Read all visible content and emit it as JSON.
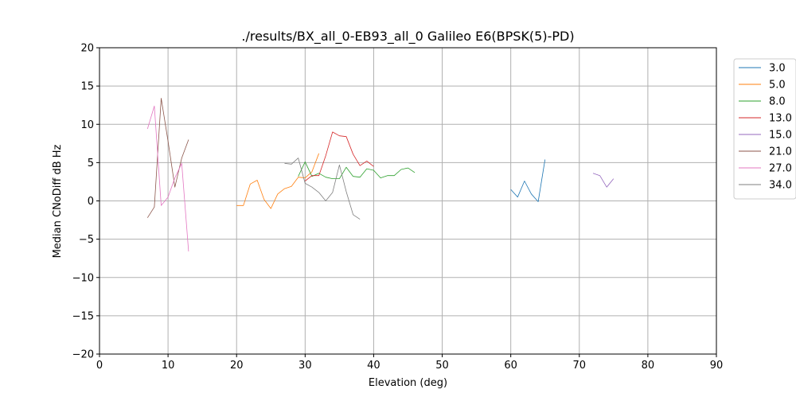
{
  "chart_data": {
    "type": "line",
    "title": "./results/BX_all_0-EB93_all_0 Galileo E6(BPSK(5)-PD)",
    "xlabel": "Elevation (deg)",
    "ylabel": "Median CNoDiff dB Hz",
    "xlim": [
      0,
      90
    ],
    "ylim": [
      -20,
      20
    ],
    "xticks": [
      "0",
      "10",
      "20",
      "30",
      "40",
      "50",
      "60",
      "70",
      "80",
      "90"
    ],
    "yticks": [
      "20",
      "15",
      "10",
      "5",
      "0",
      "−5",
      "−10",
      "−15",
      "−20"
    ],
    "grid": true,
    "legend_position": "outside-top-right",
    "series": [
      {
        "name": "3.0",
        "color": "#1f77b4",
        "x": [
          60,
          61,
          62,
          63,
          64,
          65
        ],
        "y": [
          1.5,
          0.5,
          2.6,
          0.9,
          -0.1,
          5.4
        ]
      },
      {
        "name": "5.0",
        "color": "#ff7f0e",
        "x": [
          20,
          21,
          22,
          23,
          24,
          25,
          26,
          27,
          28,
          29,
          30,
          31,
          32
        ],
        "y": [
          -0.6,
          -0.6,
          2.2,
          2.7,
          0.2,
          -1.0,
          0.9,
          1.6,
          1.9,
          3.1,
          3.0,
          3.8,
          6.2
        ]
      },
      {
        "name": "8.0",
        "color": "#2ca02c",
        "x": [
          29,
          30,
          31,
          32,
          33,
          34,
          35,
          36,
          37,
          38,
          39,
          40,
          41,
          42,
          43,
          44,
          45,
          46
        ],
        "y": [
          3.2,
          5.1,
          3.2,
          3.6,
          3.1,
          2.9,
          2.9,
          4.4,
          3.2,
          3.1,
          4.2,
          4.0,
          3.0,
          3.3,
          3.3,
          4.1,
          4.3,
          3.7
        ]
      },
      {
        "name": "13.0",
        "color": "#d62728",
        "x": [
          30,
          31,
          32,
          33,
          34,
          35,
          36,
          37,
          38,
          39,
          40
        ],
        "y": [
          2.6,
          3.3,
          3.3,
          5.9,
          9.0,
          8.5,
          8.4,
          6.1,
          4.6,
          5.2,
          4.5
        ]
      },
      {
        "name": "15.0",
        "color": "#9467bd",
        "x": [
          72,
          73,
          74,
          75
        ],
        "y": [
          3.6,
          3.3,
          1.8,
          2.9
        ]
      },
      {
        "name": "21.0",
        "color": "#8c564b",
        "x": [
          7,
          8,
          9,
          10,
          11,
          12,
          13
        ],
        "y": [
          -2.2,
          -0.8,
          13.4,
          7.8,
          1.8,
          5.6,
          8.0
        ]
      },
      {
        "name": "27.0",
        "color": "#e377c2",
        "x": [
          7,
          8,
          9,
          10,
          11,
          12,
          13
        ],
        "y": [
          9.4,
          12.4,
          -0.6,
          0.5,
          3.0,
          4.9,
          -6.6
        ]
      },
      {
        "name": "34.0",
        "color": "#7f7f7f",
        "x": [
          27,
          28,
          29,
          30,
          31,
          32,
          33,
          34,
          35,
          36,
          37,
          38
        ],
        "y": [
          4.9,
          4.8,
          5.6,
          2.3,
          1.8,
          1.1,
          0.0,
          1.1,
          4.7,
          1.2,
          -1.8,
          -2.4
        ]
      }
    ]
  }
}
